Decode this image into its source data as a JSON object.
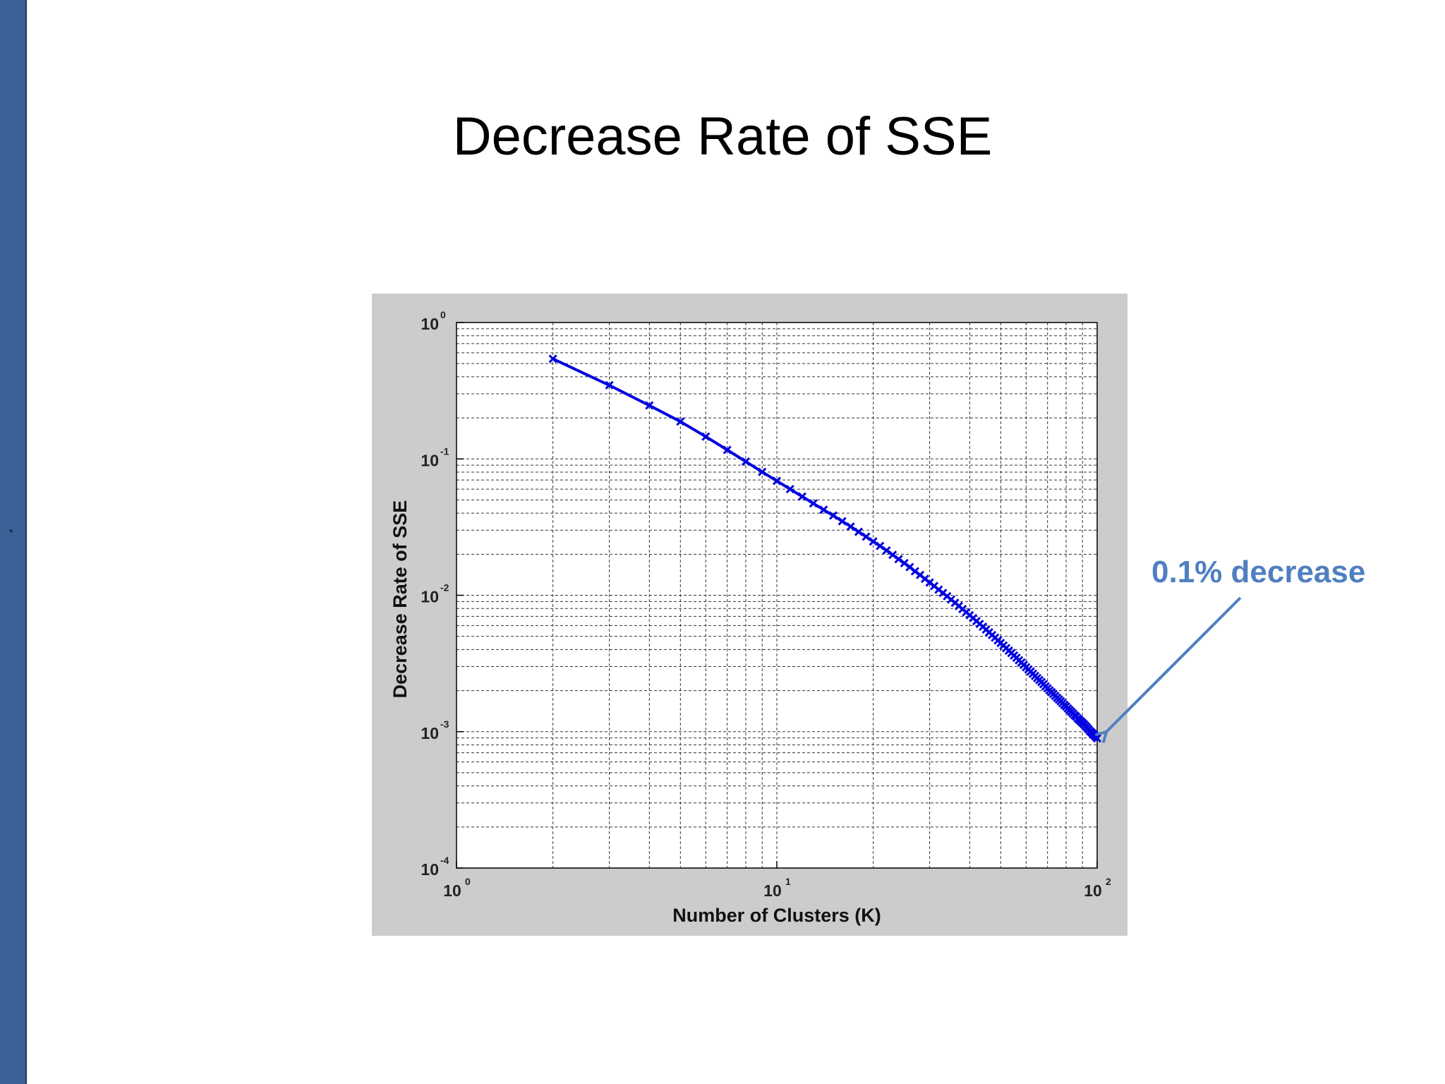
{
  "slide": {
    "title": "Decrease Rate of SSE",
    "mark": "`"
  },
  "annotation": {
    "text": "0.1% decrease",
    "color": "#4f7fc0"
  },
  "chart_data": {
    "type": "line",
    "title": "",
    "xlabel": "Number of Clusters (K)",
    "ylabel": "Decrease Rate of SSE",
    "xscale": "log",
    "yscale": "log",
    "xlim": [
      1,
      100
    ],
    "ylim": [
      0.0001,
      1
    ],
    "grid": true,
    "x_ticks": [
      {
        "base": "10",
        "exp": "0"
      },
      {
        "base": "10",
        "exp": "1"
      },
      {
        "base": "10",
        "exp": "2"
      }
    ],
    "y_ticks": [
      {
        "base": "10",
        "exp": "0"
      },
      {
        "base": "10",
        "exp": "-1"
      },
      {
        "base": "10",
        "exp": "-2"
      },
      {
        "base": "10",
        "exp": "-3"
      },
      {
        "base": "10",
        "exp": "-4"
      }
    ],
    "series": [
      {
        "color": "#0000e0",
        "marker": "x",
        "x": [
          2,
          3,
          4,
          5,
          6,
          7,
          8,
          9,
          10,
          11,
          12,
          13,
          14,
          15,
          16,
          17,
          18,
          19,
          20,
          21,
          22,
          23,
          24,
          25,
          26,
          27,
          28,
          29,
          30,
          31,
          32,
          33,
          34,
          35,
          36,
          37,
          38,
          39,
          40,
          41,
          42,
          43,
          44,
          45,
          46,
          47,
          48,
          49,
          50,
          51,
          52,
          53,
          54,
          55,
          56,
          57,
          58,
          59,
          60,
          61,
          62,
          63,
          64,
          65,
          66,
          67,
          68,
          69,
          70,
          71,
          72,
          73,
          74,
          75,
          76,
          77,
          78,
          79,
          80,
          81,
          82,
          83,
          84,
          85,
          86,
          87,
          88,
          89,
          90,
          91,
          92,
          93,
          94,
          95,
          96,
          97,
          98,
          99,
          100
        ],
        "y": [
          0.5417,
          0.3469,
          0.2467,
          0.188,
          0.1456,
          0.1164,
          0.0955,
          0.0803,
          0.069,
          0.06,
          0.053,
          0.0472,
          0.0424,
          0.0384,
          0.0349,
          0.0319,
          0.0292,
          0.0269,
          0.0248,
          0.023,
          0.0213,
          0.0198,
          0.0184,
          0.0172,
          0.0161,
          0.015,
          0.0141,
          0.0132,
          0.0124,
          0.0117,
          0.011,
          0.0104,
          0.00984,
          0.00931,
          0.00881,
          0.00835,
          0.00792,
          0.00752,
          0.00715,
          0.0068,
          0.00647,
          0.00617,
          0.00588,
          0.00561,
          0.00535,
          0.00511,
          0.00489,
          0.00467,
          0.00447,
          0.00428,
          0.0041,
          0.00393,
          0.00377,
          0.00362,
          0.00348,
          0.00334,
          0.00321,
          0.00309,
          0.00297,
          0.00286,
          0.00276,
          0.00266,
          0.00256,
          0.00247,
          0.00239,
          0.00231,
          0.00223,
          0.00215,
          0.00208,
          0.00201,
          0.00195,
          0.00189,
          0.00183,
          0.00177,
          0.00172,
          0.00167,
          0.00162,
          0.00157,
          0.00153,
          0.00148,
          0.00144,
          0.0014,
          0.00136,
          0.00132,
          0.00129,
          0.00125,
          0.00122,
          0.00119,
          0.00116,
          0.00113,
          0.0011,
          0.00107,
          0.00104,
          0.00101,
          0.000987,
          0.000963,
          0.000939,
          0.000916,
          0.000894
        ]
      }
    ]
  }
}
